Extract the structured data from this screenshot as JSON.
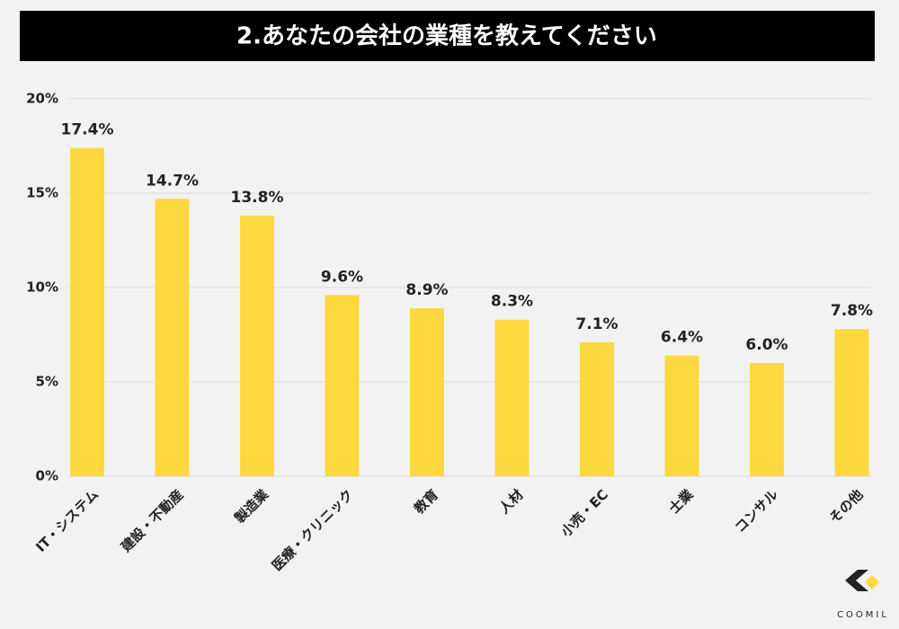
{
  "chart_data": {
    "type": "bar",
    "title": "2.あなたの会社の業種を教えてください",
    "categories": [
      "IT・システム",
      "建設・不動産",
      "製造業",
      "医療・クリニック",
      "教育",
      "人材",
      "小売・EC",
      "士業",
      "コンサル",
      "その他"
    ],
    "values": [
      17.4,
      14.7,
      13.8,
      9.6,
      8.9,
      8.3,
      7.1,
      6.4,
      6.0,
      7.8
    ],
    "value_labels": [
      "17.4%",
      "14.7%",
      "13.8%",
      "9.6%",
      "8.9%",
      "8.3%",
      "7.1%",
      "6.4%",
      "6.0%",
      "7.8%"
    ],
    "color": "#fdd93f",
    "ylim": [
      0,
      20
    ],
    "yticks": [
      {
        "value": 0,
        "label": "0%"
      },
      {
        "value": 5,
        "label": "5%"
      },
      {
        "value": 10,
        "label": "10%"
      },
      {
        "value": 15,
        "label": "15%"
      },
      {
        "value": 20,
        "label": "20%"
      }
    ],
    "grid": true
  },
  "logo": "COOMIL"
}
